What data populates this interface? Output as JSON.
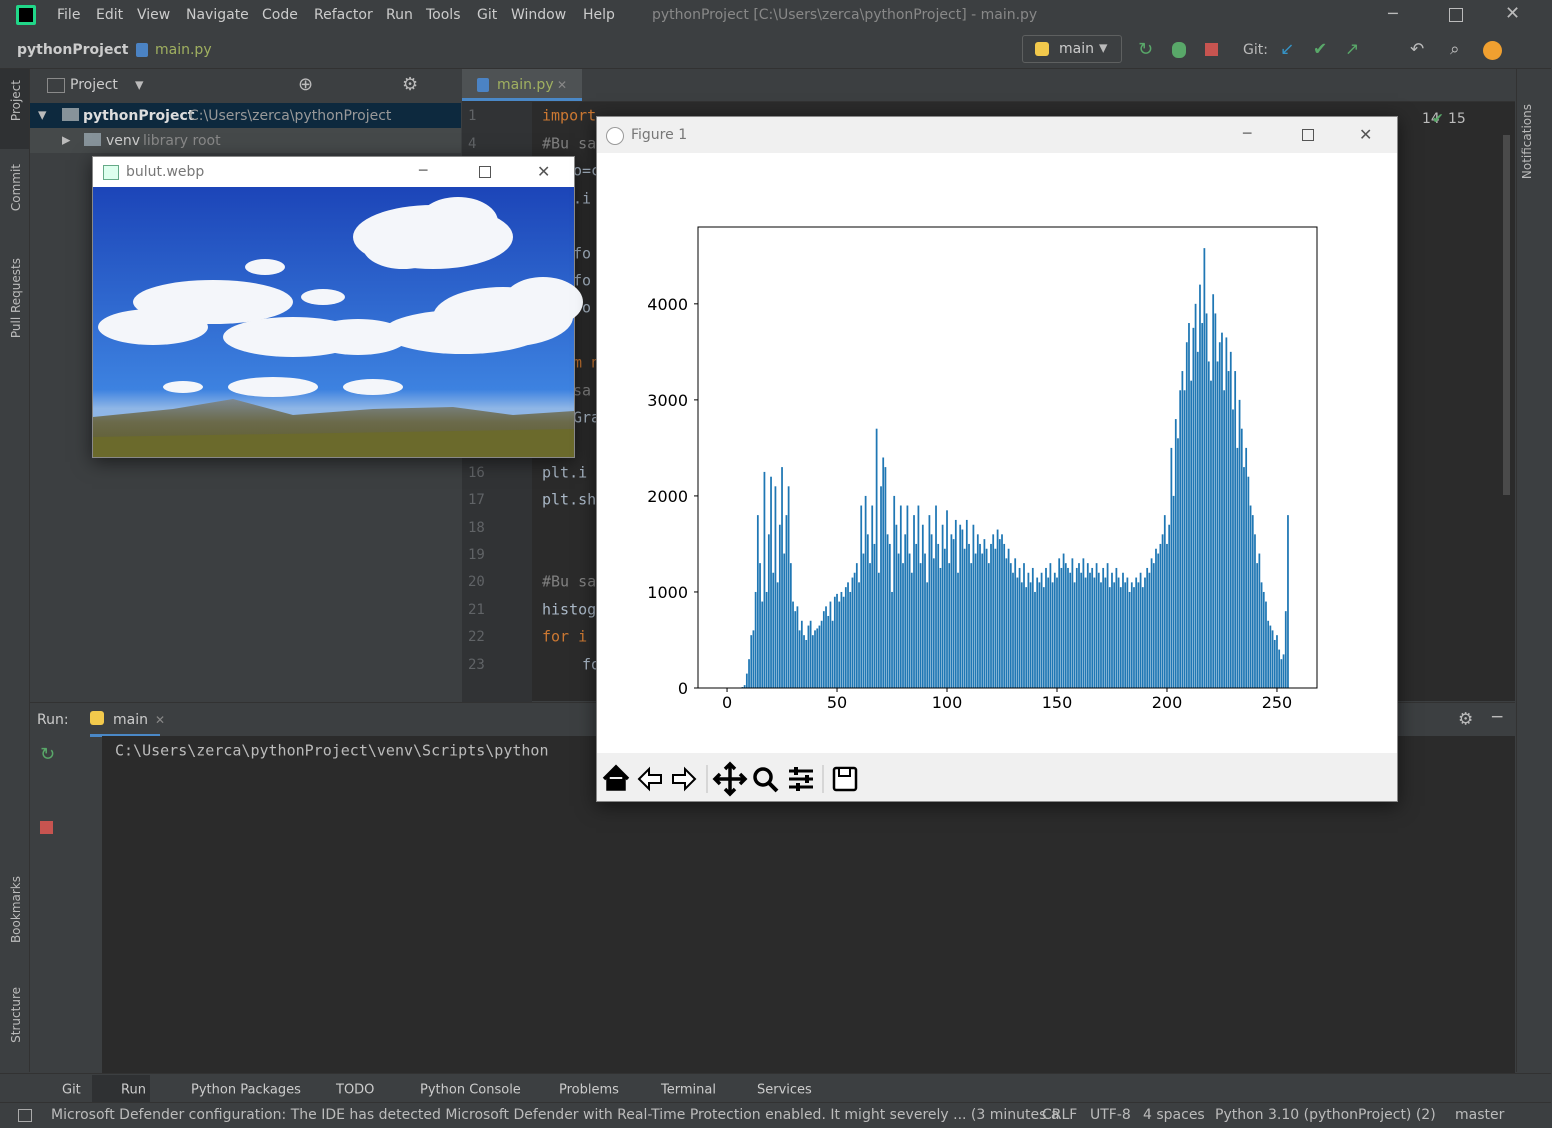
{
  "window_title": "pythonProject [C:\\Users\\zerca\\pythonProject] - main.py",
  "menu": [
    "File",
    "Edit",
    "View",
    "Navigate",
    "Code",
    "Refactor",
    "Run",
    "Tools",
    "Git",
    "Window",
    "Help"
  ],
  "nav_bar": {
    "project": "pythonProject",
    "file": "main.py",
    "run_config": "main",
    "git_label": "Git:"
  },
  "left_stripe": [
    "Project",
    "Commit",
    "Pull Requests",
    "Bookmarks",
    "Structure"
  ],
  "right_stripe": [
    "Notifications"
  ],
  "project_panel": {
    "title": "Project",
    "root_name": "pythonProject",
    "root_path": "C:\\Users\\zerca\\pythonProject",
    "venv_name": "venv",
    "venv_note": "library root"
  },
  "editor": {
    "tab": "main.py",
    "warnings": "14",
    "checks": "15",
    "lines": [
      [
        "1",
        "import"
      ],
      [
        "4",
        "#Bu sa"
      ],
      [
        "16",
        "plt.i"
      ],
      [
        "17",
        "plt.sh"
      ],
      [
        "18",
        ""
      ],
      [
        "19",
        ""
      ],
      [
        "20",
        "#Bu sa"
      ],
      [
        "21",
        "histog"
      ],
      [
        "22",
        "for i"
      ],
      [
        "23",
        "fo"
      ]
    ],
    "fragments": [
      "o=c",
      ".i",
      "fo",
      "fo",
      "fo",
      "m n",
      "sa",
      "Gra"
    ]
  },
  "image_window": {
    "title": "bulut.webp"
  },
  "figure_window": {
    "title": "Figure 1"
  },
  "run_panel": {
    "label": "Run:",
    "tab": "main",
    "command": "C:\\Users\\zerca\\pythonProject\\venv\\Scripts\\python"
  },
  "bottom_tabs": [
    "Git",
    "Run",
    "Python Packages",
    "TODO",
    "Python Console",
    "Problems",
    "Terminal",
    "Services"
  ],
  "status_bar": {
    "message": "Microsoft Defender configuration: The IDE has detected Microsoft Defender with Real-Time Protection enabled. It might severely ... (3 minutes a",
    "line_sep": "CRLF",
    "encoding": "UTF-8",
    "indent": "4 spaces",
    "interpreter": "Python 3.10 (pythonProject) (2)",
    "branch": "master"
  },
  "chart_data": {
    "type": "bar",
    "color": "#1f77b4",
    "x": [
      0,
      1,
      2,
      3,
      4,
      5,
      6,
      7,
      8,
      9,
      10,
      11,
      12,
      13,
      14,
      15,
      16,
      17,
      18,
      19,
      20,
      21,
      22,
      23,
      24,
      25,
      26,
      27,
      28,
      29,
      30,
      31,
      32,
      33,
      34,
      35,
      36,
      37,
      38,
      39,
      40,
      41,
      42,
      43,
      44,
      45,
      46,
      47,
      48,
      49,
      50,
      51,
      52,
      53,
      54,
      55,
      56,
      57,
      58,
      59,
      60,
      61,
      62,
      63,
      64,
      65,
      66,
      67,
      68,
      69,
      70,
      71,
      72,
      73,
      74,
      75,
      76,
      77,
      78,
      79,
      80,
      81,
      82,
      83,
      84,
      85,
      86,
      87,
      88,
      89,
      90,
      91,
      92,
      93,
      94,
      95,
      96,
      97,
      98,
      99,
      100,
      101,
      102,
      103,
      104,
      105,
      106,
      107,
      108,
      109,
      110,
      111,
      112,
      113,
      114,
      115,
      116,
      117,
      118,
      119,
      120,
      121,
      122,
      123,
      124,
      125,
      126,
      127,
      128,
      129,
      130,
      131,
      132,
      133,
      134,
      135,
      136,
      137,
      138,
      139,
      140,
      141,
      142,
      143,
      144,
      145,
      146,
      147,
      148,
      149,
      150,
      151,
      152,
      153,
      154,
      155,
      156,
      157,
      158,
      159,
      160,
      161,
      162,
      163,
      164,
      165,
      166,
      167,
      168,
      169,
      170,
      171,
      172,
      173,
      174,
      175,
      176,
      177,
      178,
      179,
      180,
      181,
      182,
      183,
      184,
      185,
      186,
      187,
      188,
      189,
      190,
      191,
      192,
      193,
      194,
      195,
      196,
      197,
      198,
      199,
      200,
      201,
      202,
      203,
      204,
      205,
      206,
      207,
      208,
      209,
      210,
      211,
      212,
      213,
      214,
      215,
      216,
      217,
      218,
      219,
      220,
      221,
      222,
      223,
      224,
      225,
      226,
      227,
      228,
      229,
      230,
      231,
      232,
      233,
      234,
      235,
      236,
      237,
      238,
      239,
      240,
      241,
      242,
      243,
      244,
      245,
      246,
      247,
      248,
      249,
      250,
      251,
      252,
      253,
      254,
      255
    ],
    "values": [
      0,
      0,
      0,
      0,
      0,
      0,
      0,
      10,
      30,
      150,
      300,
      550,
      600,
      1000,
      1800,
      1300,
      900,
      2250,
      1000,
      1600,
      2200,
      1200,
      2100,
      1100,
      1700,
      2300,
      1400,
      1800,
      2100,
      1300,
      900,
      800,
      850,
      600,
      700,
      550,
      500,
      650,
      700,
      550,
      600,
      620,
      650,
      700,
      800,
      850,
      750,
      900,
      700,
      950,
      980,
      900,
      1000,
      950,
      1050,
      1100,
      1000,
      1150,
      1200,
      1300,
      1100,
      1900,
      1400,
      2000,
      1600,
      1300,
      1900,
      1500,
      2700,
      1200,
      2100,
      2400,
      2300,
      1600,
      1500,
      1000,
      2000,
      1700,
      1400,
      1900,
      1300,
      1600,
      1900,
      1400,
      1200,
      1800,
      1500,
      1900,
      1300,
      1700,
      1400,
      1100,
      1800,
      1600,
      1350,
      1900,
      1500,
      1250,
      1700,
      1450,
      1850,
      1300,
      1600,
      1550,
      1750,
      1200,
      1700,
      1650,
      1450,
      1750,
      1500,
      1300,
      1700,
      1400,
      1600,
      1500,
      1400,
      1550,
      1450,
      1300,
      1500,
      1600,
      1450,
      1650,
      1550,
      1600,
      1500,
      1350,
      1450,
      1300,
      1200,
      1350,
      1150,
      1250,
      1100,
      1300,
      1050,
      1200,
      1100,
      1250,
      1000,
      1150,
      1100,
      1200,
      1050,
      1250,
      1150,
      1300,
      1100,
      1200,
      1150,
      1350,
      1250,
      1400,
      1300,
      1250,
      1200,
      1350,
      1100,
      1250,
      1300,
      1200,
      1350,
      1150,
      1300,
      1200,
      1250,
      1150,
      1300,
      1200,
      1100,
      1250,
      1150,
      1300,
      1050,
      1200,
      1100,
      1250,
      1150,
      1050,
      1200,
      1100,
      1150,
      1000,
      1100,
      1050,
      1150,
      1100,
      1200,
      1050,
      1150,
      1250,
      1200,
      1350,
      1300,
      1450,
      1400,
      1500,
      1600,
      1800,
      1500,
      1700,
      2500,
      2000,
      2800,
      2600,
      3100,
      3300,
      3100,
      3600,
      3800,
      3200,
      3750,
      4000,
      3500,
      4200,
      3800,
      4580,
      3900,
      3400,
      3200,
      4100,
      3900,
      3400,
      3600,
      3700,
      3100,
      3650,
      3300,
      3500,
      2900,
      3300,
      2500,
      3000,
      2700,
      2300,
      2500,
      2200,
      1900,
      1800,
      1600,
      1300,
      1400,
      1100,
      1000,
      900,
      700,
      650,
      600,
      500,
      550,
      400,
      300,
      350,
      800,
      1800
    ],
    "xlim": [
      -13.2,
      268.2
    ],
    "ylim": [
      0,
      4800
    ],
    "xticks": [
      0,
      50,
      100,
      150,
      200,
      250
    ],
    "yticks": [
      0,
      1000,
      2000,
      3000,
      4000
    ]
  }
}
